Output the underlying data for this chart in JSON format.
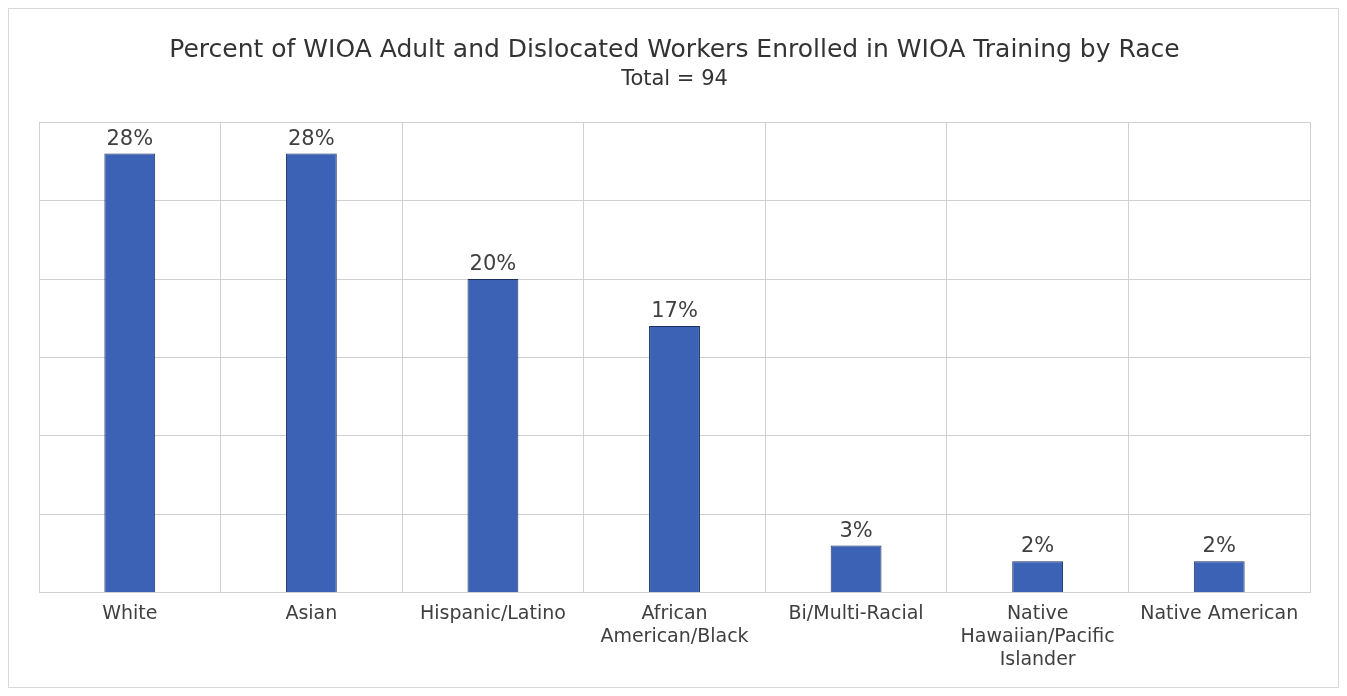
{
  "chart_data": {
    "type": "bar",
    "title": "Percent of WIOA Adult and Dislocated Workers Enrolled in WIOA Training by Race",
    "subtitle": "Total = 94",
    "categories": [
      "White",
      "Asian",
      "Hispanic/Latino",
      "African American/Black",
      "Bi/Multi-Racial",
      "Native Hawaiian/Pacific Islander",
      "Native American"
    ],
    "values": [
      28,
      28,
      20,
      17,
      3,
      2,
      2
    ],
    "value_labels": [
      "28%",
      "28%",
      "20%",
      "17%",
      "3%",
      "2%",
      "2%"
    ],
    "color": "#3b62b4",
    "ylim": [
      0,
      30
    ],
    "yticks": [
      {
        "value": 0,
        "label": null
      },
      {
        "value": 5,
        "label": null
      },
      {
        "value": 10,
        "label": null
      },
      {
        "value": 15,
        "label": null
      },
      {
        "value": 20,
        "label": null
      },
      {
        "value": 25,
        "label": null
      },
      {
        "value": 30,
        "label": null
      }
    ],
    "tick_labels": "x",
    "grid": true,
    "legend": false
  }
}
